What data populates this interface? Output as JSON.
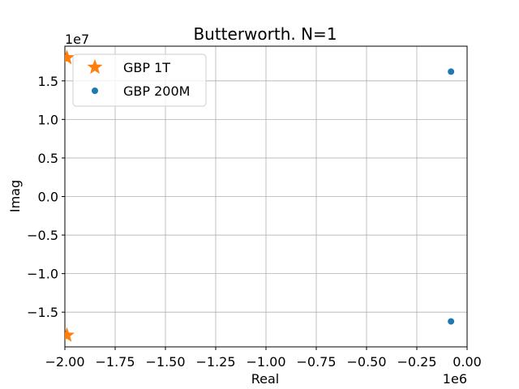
{
  "chart_data": {
    "type": "scatter",
    "title": "Butterworth. N=1",
    "xlabel": "Real",
    "ylabel": "Imag",
    "x_offset_label": "1e6",
    "y_offset_label": "1e7",
    "xlim": [
      -2.0,
      0.0
    ],
    "ylim": [
      -1.95,
      1.95
    ],
    "x_ticks": [
      -2.0,
      -1.75,
      -1.5,
      -1.25,
      -1.0,
      -0.75,
      -0.5,
      -0.25,
      0.0
    ],
    "x_tick_labels": [
      "−2.00",
      "−1.75",
      "−1.50",
      "−1.25",
      "−1.00",
      "−0.75",
      "−0.50",
      "−0.25",
      "0.00"
    ],
    "y_ticks": [
      -1.5,
      -1.0,
      -0.5,
      0.0,
      0.5,
      1.0,
      1.5
    ],
    "y_tick_labels": [
      "−1.5",
      "−1.0",
      "−0.5",
      "0.0",
      "0.5",
      "1.0",
      "1.5"
    ],
    "grid": true,
    "legend_position": "upper-left",
    "series": [
      {
        "name": "GBP 1T",
        "marker": "star",
        "color": "#ff7f0e",
        "points": [
          {
            "x": -1.99,
            "y": 1.8
          },
          {
            "x": -1.99,
            "y": -1.8
          }
        ]
      },
      {
        "name": "GBP 200M",
        "marker": "circle",
        "color": "#1f77b4",
        "points": [
          {
            "x": -0.08,
            "y": 1.62
          },
          {
            "x": -0.08,
            "y": -1.62
          }
        ]
      }
    ]
  }
}
